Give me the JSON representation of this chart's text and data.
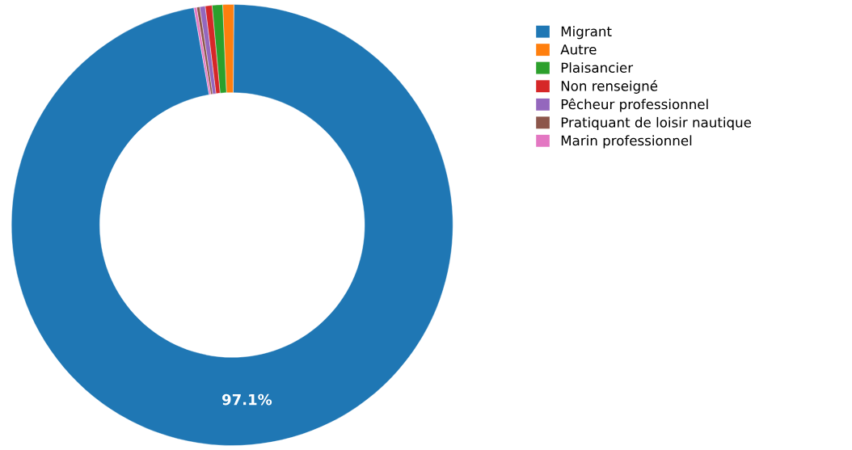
{
  "chart_data": {
    "type": "donut",
    "categories": [
      "Migrant",
      "Autre",
      "Plaisancier",
      "Non renseigné",
      "Pêcheur professionnel",
      "Pratiquant de loisir nautique",
      "Marin professionnel"
    ],
    "values": [
      97.1,
      0.81,
      0.77,
      0.5,
      0.4,
      0.22,
      0.2
    ],
    "colors": [
      "#1f77b4",
      "#ff7f0e",
      "#2ca02c",
      "#d62728",
      "#9467bd",
      "#8c564b",
      "#e377c2"
    ],
    "value_labels": [
      "97.1%",
      null,
      null,
      null,
      null,
      null,
      null
    ],
    "legend": "top right"
  }
}
